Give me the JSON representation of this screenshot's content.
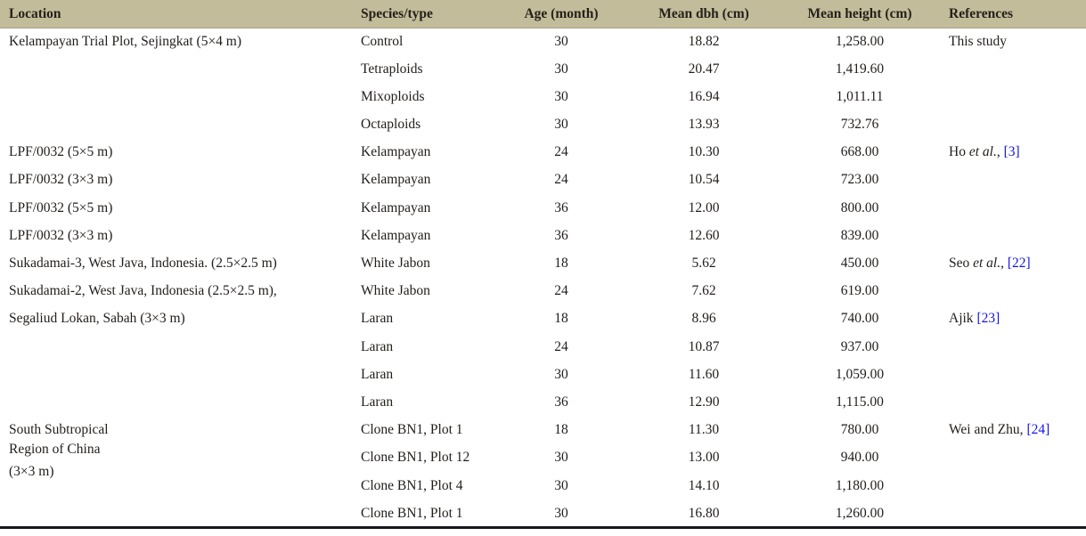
{
  "colors": {
    "header_bg": "#c3bc9a",
    "link_blue": "#1414e6",
    "text": "#211d1a",
    "bottom_border": "#17171f"
  },
  "table": {
    "columns": [
      {
        "label": "Location",
        "align": "left"
      },
      {
        "label": "Species/type",
        "align": "left"
      },
      {
        "label": "Age (month)",
        "align": "center"
      },
      {
        "label": "Mean dbh (cm)",
        "align": "center"
      },
      {
        "label": "Mean height (cm)",
        "align": "center"
      },
      {
        "label": "References",
        "align": "left"
      }
    ],
    "rows": [
      {
        "location": {
          "lines": [
            "Kelampayan Trial Plot, Sejingkat (5×4 m)"
          ],
          "rowspan": 4
        },
        "species": "Control",
        "age": "30",
        "dbh": "18.82",
        "height": "1,258.00",
        "reference": {
          "pre": "This study",
          "italic": "",
          "post": "",
          "link": "",
          "rowspan": 4
        }
      },
      {
        "species": "Tetraploids",
        "age": "30",
        "dbh": "20.47",
        "height": "1,419.60"
      },
      {
        "species": "Mixoploids",
        "age": "30",
        "dbh": "16.94",
        "height": "1,011.11"
      },
      {
        "species": "Octaploids",
        "age": "30",
        "dbh": "13.93",
        "height": "732.76"
      },
      {
        "location": {
          "lines": [
            "LPF/0032 (5×5 m)"
          ],
          "rowspan": 1
        },
        "species": "Kelampayan",
        "age": "24",
        "dbh": "10.30",
        "height": "668.00",
        "reference": {
          "pre": "Ho ",
          "italic": "et al.",
          "post": ", ",
          "link": "[3]",
          "rowspan": 4
        }
      },
      {
        "location": {
          "lines": [
            "LPF/0032 (3×3 m)"
          ],
          "rowspan": 1
        },
        "species": "Kelampayan",
        "age": "24",
        "dbh": "10.54",
        "height": "723.00"
      },
      {
        "location": {
          "lines": [
            "LPF/0032 (5×5 m)"
          ],
          "rowspan": 1
        },
        "species": "Kelampayan",
        "age": "36",
        "dbh": "12.00",
        "height": "800.00"
      },
      {
        "location": {
          "lines": [
            "LPF/0032 (3×3 m)"
          ],
          "rowspan": 1
        },
        "species": "Kelampayan",
        "age": "36",
        "dbh": "12.60",
        "height": "839.00"
      },
      {
        "location": {
          "lines": [
            "Sukadamai-3, West Java, Indonesia. (2.5×2.5 m)"
          ],
          "rowspan": 1
        },
        "species": "White Jabon",
        "age": "18",
        "dbh": "5.62",
        "height": "450.00",
        "reference": {
          "pre": "Seo ",
          "italic": "et al.",
          "post": ", ",
          "link": "[22]",
          "rowspan": 2
        }
      },
      {
        "location": {
          "lines": [
            "Sukadamai-2, West Java, Indonesia (2.5×2.5 m),"
          ],
          "rowspan": 1
        },
        "species": "White Jabon",
        "age": "24",
        "dbh": "7.62",
        "height": "619.00"
      },
      {
        "location": {
          "lines": [
            "Segaliud Lokan, Sabah (3×3 m)"
          ],
          "rowspan": 4
        },
        "species": "Laran",
        "age": "18",
        "dbh": "8.96",
        "height": "740.00",
        "reference": {
          "pre": "Ajik ",
          "italic": "",
          "post": "",
          "link": "[23]",
          "rowspan": 4
        }
      },
      {
        "species": "Laran",
        "age": "24",
        "dbh": "10.87",
        "height": "937.00"
      },
      {
        "species": "Laran",
        "age": "30",
        "dbh": "11.60",
        "height": "1,059.00"
      },
      {
        "species": "Laran",
        "age": "36",
        "dbh": "12.90",
        "height": "1,115.00"
      },
      {
        "location": {
          "lines": [
            "South Subtropical",
            "Region of China",
            "(3×3 m)"
          ],
          "rowspan": 4
        },
        "species": "Clone BN1, Plot 1",
        "age": "18",
        "dbh": "11.30",
        "height": "780.00",
        "reference": {
          "pre": "Wei and Zhu, ",
          "italic": "",
          "post": "",
          "link": "[24]",
          "rowspan": 4
        }
      },
      {
        "species": "Clone BN1, Plot 12",
        "age": "30",
        "dbh": "13.00",
        "height": "940.00"
      },
      {
        "species": "Clone BN1, Plot 4",
        "age": "30",
        "dbh": "14.10",
        "height": "1,180.00"
      },
      {
        "species": "Clone BN1, Plot 1",
        "age": "30",
        "dbh": "16.80",
        "height": "1,260.00"
      }
    ]
  }
}
